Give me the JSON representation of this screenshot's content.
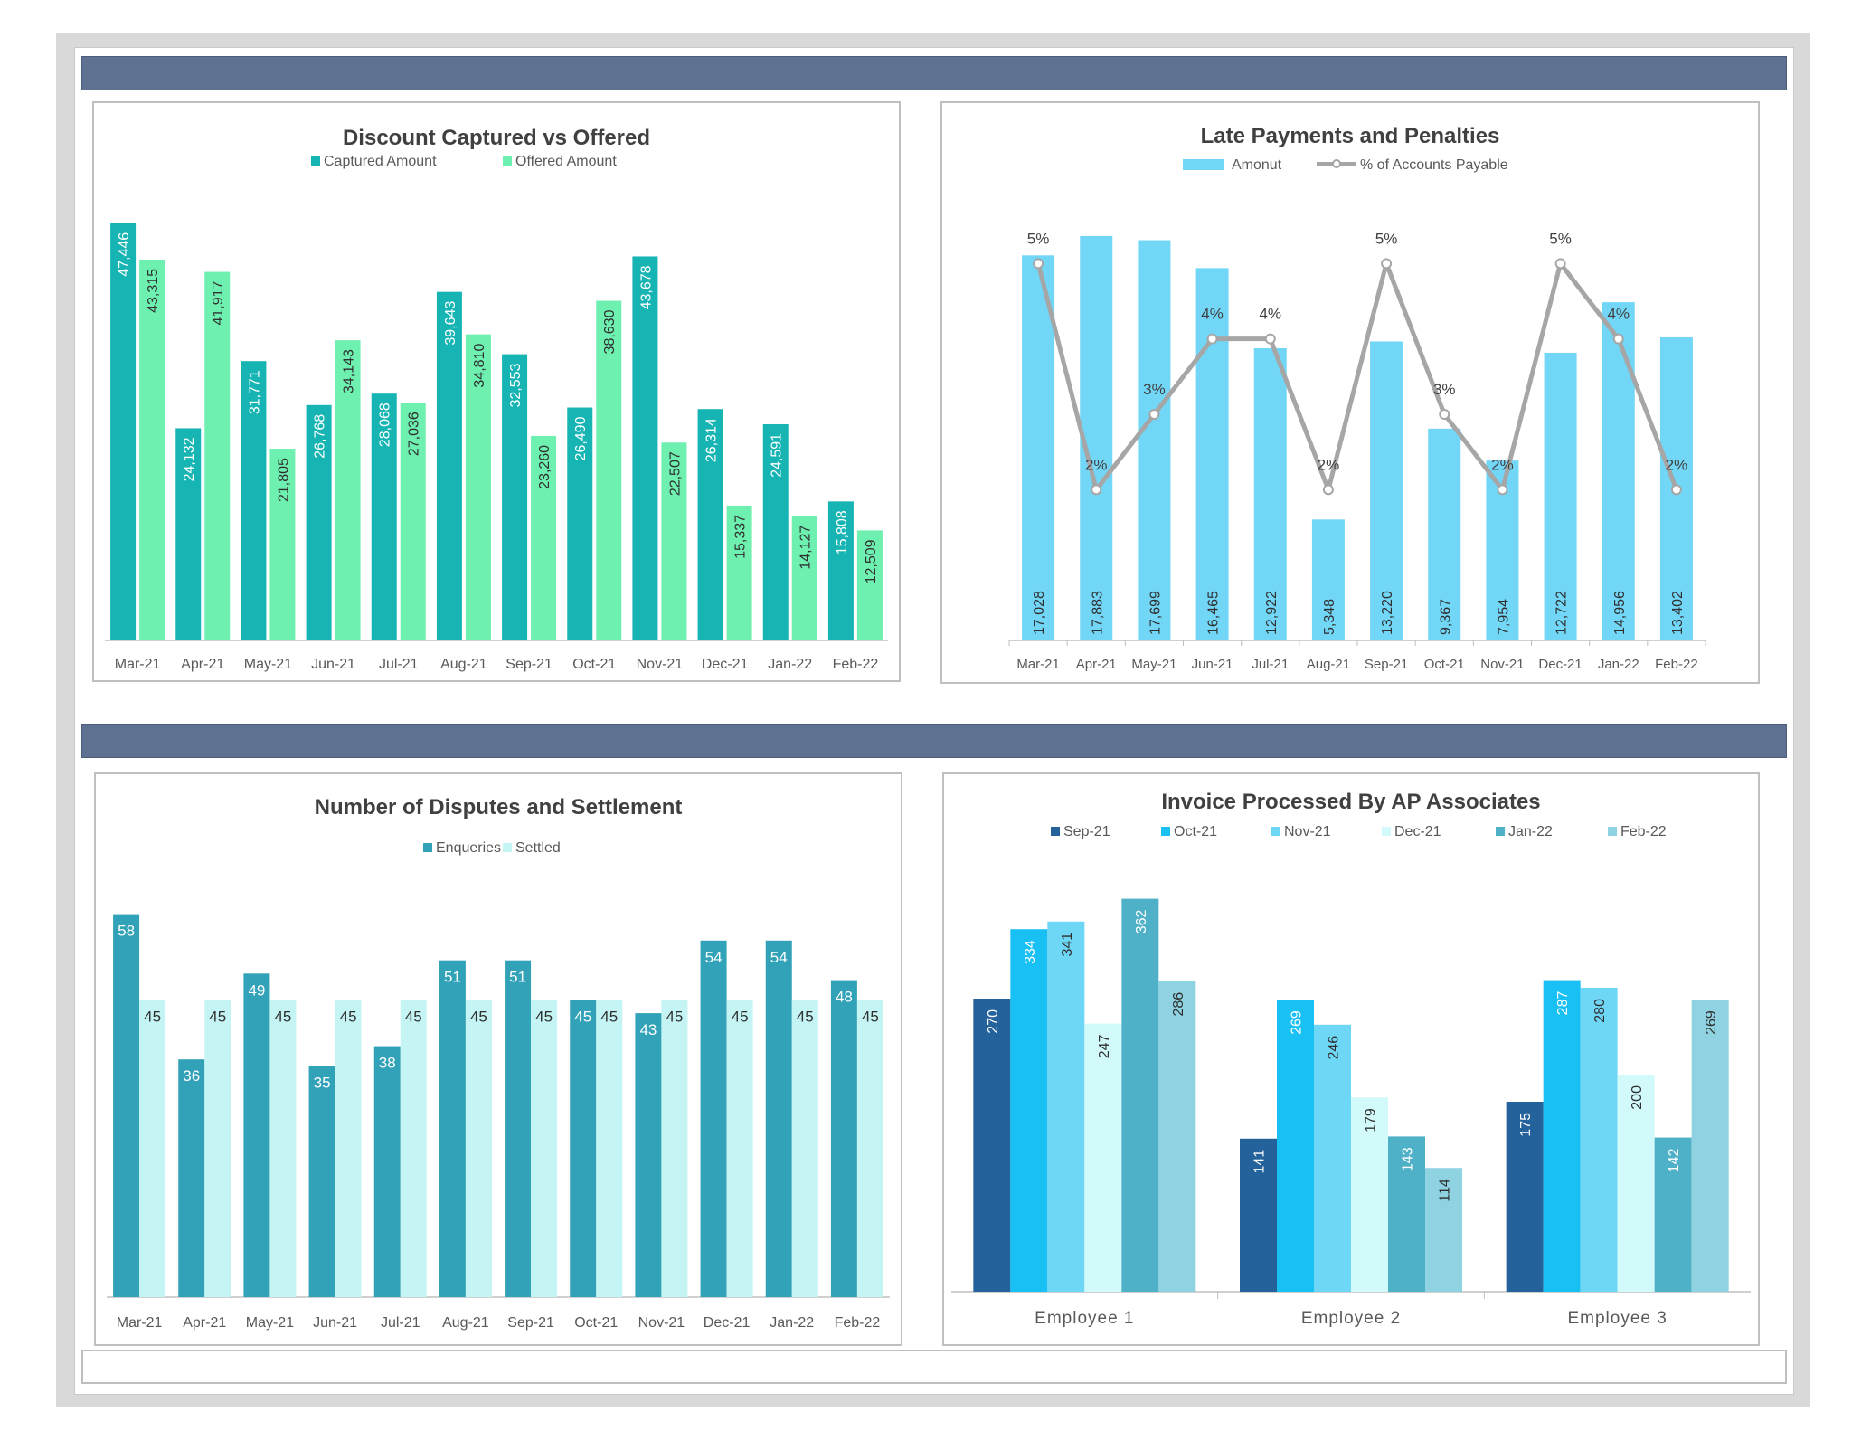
{
  "months": [
    "Mar-21",
    "Apr-21",
    "May-21",
    "Jun-21",
    "Jul-21",
    "Aug-21",
    "Sep-21",
    "Oct-21",
    "Nov-21",
    "Dec-21",
    "Jan-22",
    "Feb-22"
  ],
  "chart_data": [
    {
      "id": "discount",
      "type": "bar",
      "title": "Discount Captured vs Offered",
      "categories": [
        "Mar-21",
        "Apr-21",
        "May-21",
        "Jun-21",
        "Jul-21",
        "Aug-21",
        "Sep-21",
        "Oct-21",
        "Nov-21",
        "Dec-21",
        "Jan-22",
        "Feb-22"
      ],
      "series": [
        {
          "name": "Captured Amount",
          "color": "#17b4b4",
          "values": [
            47446,
            24132,
            31771,
            26768,
            28068,
            39643,
            32553,
            26490,
            43678,
            26314,
            24591,
            15808
          ]
        },
        {
          "name": "Offered Amount",
          "color": "#6ef0b0",
          "values": [
            43315,
            41917,
            21805,
            34143,
            27036,
            34810,
            23260,
            38630,
            22507,
            15337,
            14127,
            12509
          ]
        }
      ],
      "ylim": [
        0,
        50000
      ],
      "legend": "top",
      "grid": false
    },
    {
      "id": "late",
      "type": "bar+line",
      "title": "Late Payments and Penalties",
      "categories": [
        "Mar-21",
        "Apr-21",
        "May-21",
        "Jun-21",
        "Jul-21",
        "Aug-21",
        "Sep-21",
        "Oct-21",
        "Nov-21",
        "Dec-21",
        "Jan-22",
        "Feb-22"
      ],
      "series": [
        {
          "name": "Amonut",
          "color": "#72d6f7",
          "values": [
            17028,
            17883,
            17699,
            16465,
            12922,
            5348,
            13220,
            9367,
            7954,
            12722,
            14956,
            13402
          ]
        },
        {
          "name": "% of Accounts Payable",
          "color": "#a6a6a6",
          "values": [
            5,
            2,
            3,
            4,
            4,
            2,
            5,
            3,
            2,
            5,
            4,
            2
          ],
          "labels": [
            "5%",
            "2%",
            "3%",
            "4%",
            "4%",
            "2%",
            "5%",
            "3%",
            "2%",
            "5%",
            "4%",
            "2%"
          ]
        }
      ],
      "ylim": [
        0,
        20000
      ],
      "y2lim": [
        0,
        6
      ],
      "legend": "top",
      "grid": false
    },
    {
      "id": "disputes",
      "type": "bar",
      "title": "Number of Disputes and Settlement",
      "categories": [
        "Mar-21",
        "Apr-21",
        "May-21",
        "Jun-21",
        "Jul-21",
        "Aug-21",
        "Sep-21",
        "Oct-21",
        "Nov-21",
        "Dec-21",
        "Jan-22",
        "Feb-22"
      ],
      "series": [
        {
          "name": "Enqueries",
          "color": "#31a2b7",
          "values": [
            58,
            36,
            49,
            35,
            38,
            51,
            51,
            45,
            43,
            54,
            54,
            48
          ]
        },
        {
          "name": "Settled",
          "color": "#c5f4f4",
          "values": [
            45,
            45,
            45,
            45,
            45,
            45,
            45,
            45,
            45,
            45,
            45,
            45
          ]
        }
      ],
      "ylim": [
        0,
        60
      ],
      "legend": "top",
      "grid": false
    },
    {
      "id": "invoice",
      "type": "bar",
      "title": "Invoice Processed By AP Associates",
      "categories": [
        "Employee 1",
        "Employee 2",
        "Employee 3"
      ],
      "series": [
        {
          "name": "Sep-21",
          "color": "#23629a",
          "values": [
            270,
            141,
            175
          ]
        },
        {
          "name": "Oct-21",
          "color": "#19c0f4",
          "values": [
            334,
            269,
            287
          ]
        },
        {
          "name": "Nov-21",
          "color": "#6fd7f6",
          "values": [
            341,
            246,
            280
          ]
        },
        {
          "name": "Dec-21",
          "color": "#d2fafa",
          "values": [
            247,
            179,
            200
          ]
        },
        {
          "name": "Jan-22",
          "color": "#4eb1c8",
          "values": [
            362,
            143,
            142
          ]
        },
        {
          "name": "Feb-22",
          "color": "#8fd3e2",
          "values": [
            286,
            114,
            269
          ]
        }
      ],
      "ylim": [
        0,
        400
      ],
      "legend": "top",
      "grid": false
    }
  ]
}
